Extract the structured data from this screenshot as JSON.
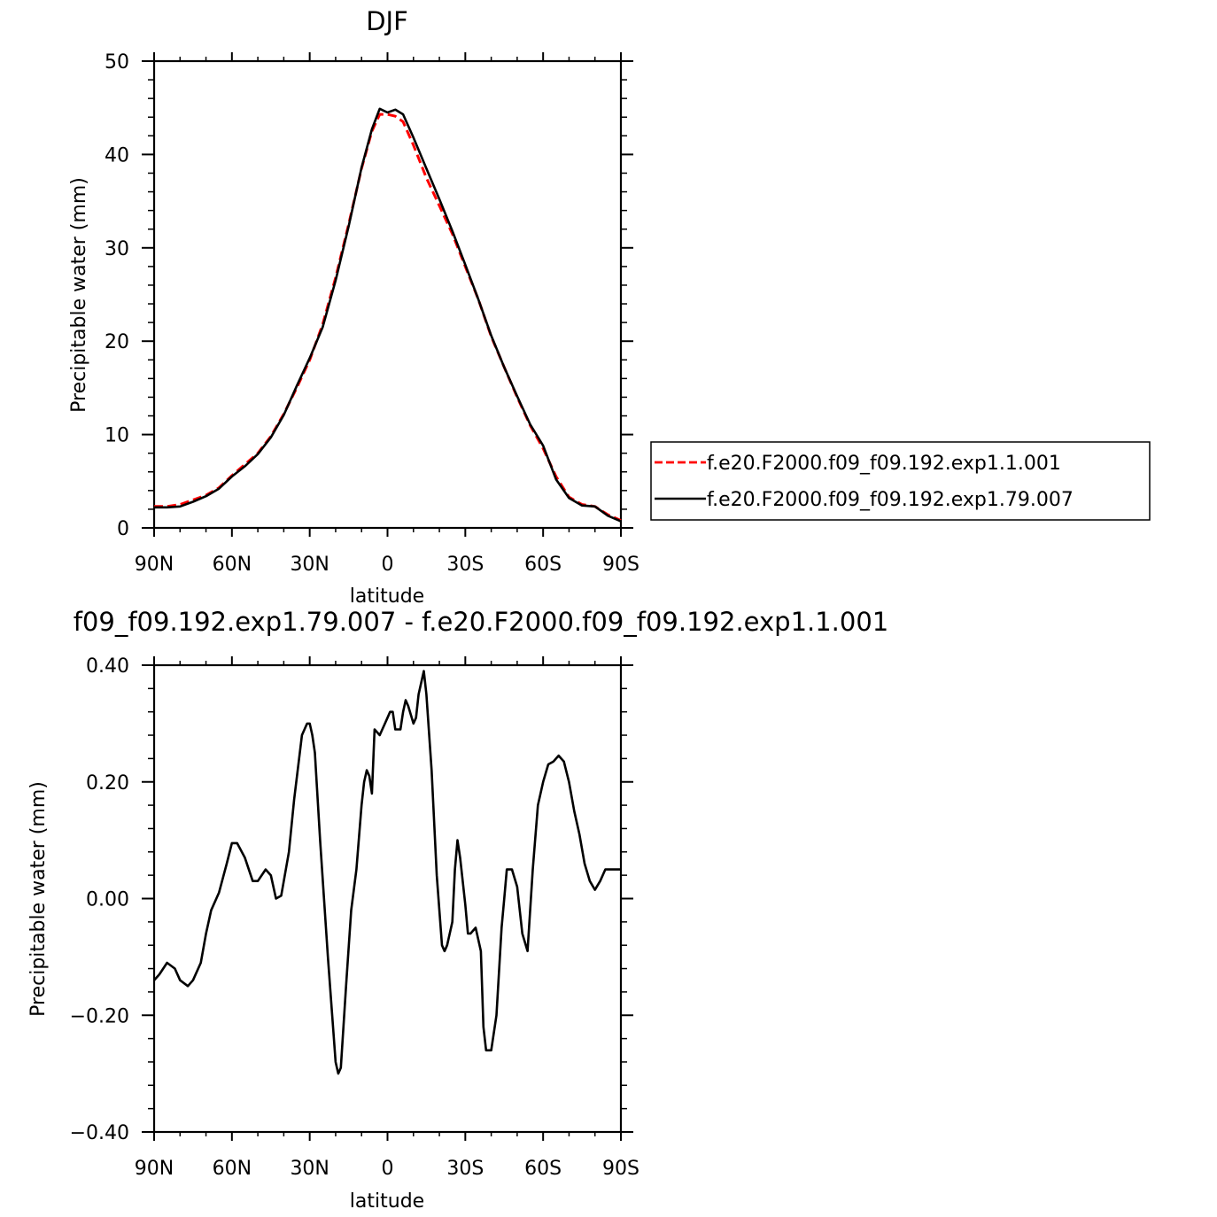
{
  "chart_data": [
    {
      "type": "line",
      "title": "DJF",
      "xlabel": "latitude",
      "ylabel": "Precipitable water (mm)",
      "xlim": [
        90,
        -90
      ],
      "ylim": [
        0,
        50
      ],
      "xticks": [
        90,
        60,
        30,
        0,
        -30,
        -60,
        -90
      ],
      "xtick_labels": [
        "90N",
        "60N",
        "30N",
        "0",
        "30S",
        "60S",
        "90S"
      ],
      "yticks": [
        0,
        10,
        20,
        30,
        40,
        50
      ],
      "ytick_labels": [
        "0",
        "10",
        "20",
        "30",
        "40",
        "50"
      ],
      "legend_position": "right",
      "series": [
        {
          "name": "f.e20.F2000.f09_f09.192.exp1.1.001",
          "color": "#ff0000",
          "dash": "dashed",
          "x": [
            90,
            85,
            80,
            75,
            70,
            65,
            60,
            55,
            50,
            45,
            40,
            35,
            30,
            25,
            20,
            15,
            10,
            6,
            3,
            0,
            -3,
            -6,
            -10,
            -15,
            -20,
            -25,
            -30,
            -35,
            -40,
            -45,
            -50,
            -55,
            -60,
            -65,
            -70,
            -75,
            -80,
            -85,
            -90
          ],
          "y": [
            2.3,
            2.3,
            2.5,
            3.0,
            3.5,
            4.3,
            5.6,
            6.8,
            8.0,
            9.8,
            12.2,
            15.0,
            18.0,
            21.8,
            26.8,
            32.5,
            38.5,
            42.5,
            44.3,
            44.3,
            44.1,
            43.5,
            41.0,
            37.5,
            34.5,
            31.5,
            28.0,
            24.5,
            20.5,
            17.2,
            14.0,
            11.0,
            8.5,
            5.5,
            3.3,
            2.5,
            2.3,
            1.4,
            0.8
          ]
        },
        {
          "name": "f.e20.F2000.f09_f09.192.exp1.79.007",
          "color": "#000000",
          "dash": "solid",
          "x": [
            90,
            85,
            80,
            75,
            70,
            65,
            60,
            55,
            50,
            45,
            40,
            35,
            30,
            25,
            20,
            15,
            10,
            6,
            3,
            0,
            -3,
            -6,
            -10,
            -15,
            -20,
            -25,
            -30,
            -35,
            -40,
            -45,
            -50,
            -55,
            -60,
            -65,
            -70,
            -75,
            -80,
            -85,
            -90
          ],
          "y": [
            2.2,
            2.2,
            2.3,
            2.8,
            3.4,
            4.2,
            5.5,
            6.6,
            7.9,
            9.7,
            12.1,
            15.2,
            18.2,
            21.5,
            26.5,
            32.3,
            38.6,
            42.7,
            44.9,
            44.5,
            44.8,
            44.3,
            41.8,
            38.5,
            35.2,
            31.8,
            28.2,
            24.5,
            20.6,
            17.2,
            14.1,
            11.1,
            8.8,
            5.2,
            3.2,
            2.4,
            2.3,
            1.3,
            0.7
          ]
        }
      ]
    },
    {
      "type": "line",
      "title": "f09_f09.192.exp1.79.007 - f.e20.F2000.f09_f09.192.exp1.1.001",
      "xlabel": "latitude",
      "ylabel": "Precipitable water (mm)",
      "xlim": [
        90,
        -90
      ],
      "ylim": [
        -0.4,
        0.4
      ],
      "xticks": [
        90,
        60,
        30,
        0,
        -30,
        -60,
        -90
      ],
      "xtick_labels": [
        "90N",
        "60N",
        "30N",
        "0",
        "30S",
        "60S",
        "90S"
      ],
      "yticks": [
        0.4,
        0.2,
        0.0,
        -0.2,
        -0.4
      ],
      "ytick_labels": [
        "0.40",
        "0.20",
        "0.00",
        "−0.20",
        "−0.40"
      ],
      "series": [
        {
          "color": "#000000",
          "x": [
            90,
            88,
            85,
            82,
            80,
            77,
            75,
            72,
            70,
            68,
            65,
            62,
            60,
            58,
            55,
            52,
            50,
            47,
            45,
            43,
            41,
            38,
            36,
            33,
            31,
            30,
            29,
            28,
            26,
            23,
            21,
            20,
            19,
            18,
            16,
            14,
            12,
            10,
            9,
            8,
            7,
            6,
            5,
            3,
            1,
            0,
            -1,
            -2,
            -3,
            -5,
            -6,
            -7,
            -8,
            -10,
            -11,
            -12,
            -14,
            -15,
            -17,
            -19,
            -21,
            -22,
            -23,
            -25,
            -26,
            -27,
            -28,
            -30,
            -31,
            -32,
            -34,
            -36,
            -37,
            -38,
            -40,
            -42,
            -44,
            -45,
            -46,
            -48,
            -50,
            -52,
            -54,
            -56,
            -58,
            -60,
            -62,
            -64,
            -65,
            -66,
            -68,
            -70,
            -72,
            -74,
            -76,
            -78,
            -80,
            -82,
            -84,
            -86,
            -88,
            -90
          ],
          "y": [
            -0.14,
            -0.13,
            -0.11,
            -0.12,
            -0.14,
            -0.15,
            -0.14,
            -0.11,
            -0.06,
            -0.02,
            0.01,
            0.06,
            0.095,
            0.095,
            0.07,
            0.03,
            0.03,
            0.05,
            0.04,
            0.0,
            0.005,
            0.08,
            0.17,
            0.28,
            0.3,
            0.3,
            0.28,
            0.25,
            0.1,
            -0.1,
            -0.22,
            -0.28,
            -0.3,
            -0.29,
            -0.15,
            -0.02,
            0.05,
            0.16,
            0.2,
            0.22,
            0.21,
            0.18,
            0.29,
            0.28,
            0.3,
            0.31,
            0.32,
            0.32,
            0.29,
            0.29,
            0.32,
            0.34,
            0.33,
            0.3,
            0.31,
            0.35,
            0.39,
            0.35,
            0.22,
            0.04,
            -0.08,
            -0.09,
            -0.08,
            -0.04,
            0.05,
            0.1,
            0.07,
            -0.01,
            -0.06,
            -0.06,
            -0.05,
            -0.09,
            -0.22,
            -0.26,
            -0.26,
            -0.2,
            -0.05,
            0.0,
            0.05,
            0.05,
            0.02,
            -0.06,
            -0.09,
            0.05,
            0.16,
            0.2,
            0.23,
            0.235,
            0.24,
            0.245,
            0.235,
            0.2,
            0.15,
            0.11,
            0.06,
            0.03,
            0.015,
            0.03,
            0.05,
            0.05,
            0.05,
            0.05
          ]
        }
      ]
    }
  ]
}
